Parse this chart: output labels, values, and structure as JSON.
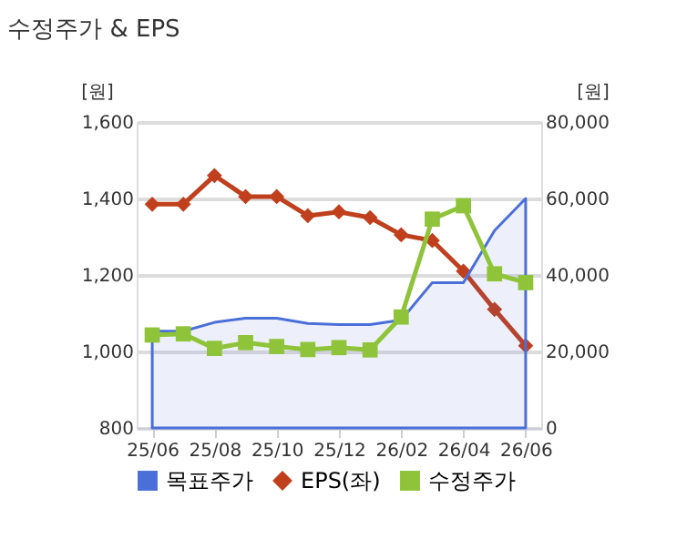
{
  "chart_data": {
    "type": "line",
    "title": "수정주가 & EPS",
    "categories": [
      "25/06",
      null,
      "25/08",
      null,
      "25/10",
      null,
      "25/12",
      null,
      "26/02",
      null,
      "26/04",
      null,
      "26/06"
    ],
    "series": [
      {
        "name": "목표주가",
        "type": "area",
        "axis": "y2",
        "color": "#4a6fd8",
        "marker": "none",
        "values": [
          25300,
          25300,
          27600,
          28700,
          28700,
          27300,
          27000,
          27000,
          28200,
          38000,
          38000,
          51600,
          60000
        ]
      },
      {
        "name": "EPS(좌)",
        "color": "#c0401e",
        "marker": "diamond",
        "values": [
          1385,
          1385,
          1460,
          1405,
          1405,
          1355,
          1365,
          1350,
          1305,
          1290,
          1210,
          1110,
          1015
        ]
      },
      {
        "name": "수정주가",
        "axis": "y2",
        "color": "#8fc43a",
        "marker": "square",
        "values": [
          24300,
          24600,
          20800,
          22300,
          21300,
          20500,
          21000,
          20400,
          29000,
          54600,
          58100,
          40300,
          38000
        ]
      }
    ],
    "ylabel": "[원]",
    "y2label": "[원]",
    "ylim": [
      800,
      1600
    ],
    "yticks": [
      800,
      {
        "value": 1000,
        "label": "1,000"
      },
      {
        "value": 1200,
        "label": "1,200"
      },
      {
        "value": 1400,
        "label": "1,400"
      },
      {
        "value": 1600,
        "label": "1,600"
      }
    ],
    "y2lim": [
      0,
      80000
    ],
    "y2ticks": [
      0,
      {
        "value": 20000,
        "label": "20,000"
      },
      {
        "value": 40000,
        "label": "40,000"
      },
      {
        "value": 60000,
        "label": "60,000"
      },
      {
        "value": 80000,
        "label": "80,000"
      }
    ],
    "grid": "y",
    "legend": "bottom"
  }
}
